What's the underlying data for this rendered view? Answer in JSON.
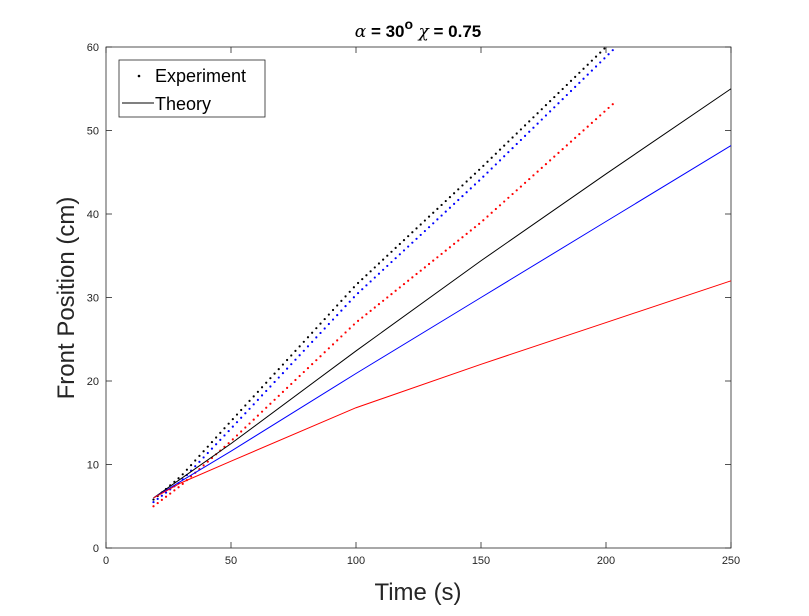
{
  "chart_data": {
    "type": "line",
    "title_parts": {
      "alpha_symbol": "α",
      "alpha_text": " = 30",
      "degree": "o",
      "chi_symbol": " χ",
      "chi_text": " = 0.75"
    },
    "xlabel": "Time (s)",
    "ylabel": "Front Position (cm)",
    "xlim": [
      0,
      250
    ],
    "ylim": [
      0,
      60
    ],
    "xticks": [
      "0",
      "50",
      "100",
      "150",
      "200",
      "250"
    ],
    "yticks": [
      "0",
      "10",
      "20",
      "30",
      "40",
      "50",
      "60"
    ],
    "grid": false,
    "legend": {
      "position": "top-left",
      "entries": [
        "Experiment",
        "Theory"
      ]
    },
    "series": [
      {
        "kind": "experiment",
        "color": "#000000",
        "t_start": 19,
        "t_end": 200,
        "dt": 1.67,
        "anchors": [
          [
            19,
            5.8
          ],
          [
            30,
            8.6
          ],
          [
            50,
            15.2
          ],
          [
            100,
            31.5
          ],
          [
            150,
            45.5
          ],
          [
            200,
            60.0
          ]
        ]
      },
      {
        "kind": "experiment",
        "color": "#0000ff",
        "t_start": 19,
        "t_end": 204,
        "dt": 1.67,
        "anchors": [
          [
            19,
            5.5
          ],
          [
            30,
            8.0
          ],
          [
            50,
            14.3
          ],
          [
            100,
            30.3
          ],
          [
            150,
            44.2
          ],
          [
            204,
            60.0
          ]
        ]
      },
      {
        "kind": "experiment",
        "color": "#ff0000",
        "t_start": 19,
        "t_end": 204,
        "dt": 1.67,
        "anchors": [
          [
            19,
            5.0
          ],
          [
            30,
            7.5
          ],
          [
            50,
            12.8
          ],
          [
            100,
            27.0
          ],
          [
            150,
            39.0
          ],
          [
            204,
            53.5
          ]
        ]
      },
      {
        "kind": "theory",
        "color": "#000000",
        "points": [
          [
            19,
            6.0
          ],
          [
            30,
            8.3
          ],
          [
            50,
            12.5
          ],
          [
            100,
            23.6
          ],
          [
            150,
            34.4
          ],
          [
            200,
            44.8
          ],
          [
            250,
            55.0
          ]
        ]
      },
      {
        "kind": "theory",
        "color": "#0000ff",
        "points": [
          [
            19,
            6.0
          ],
          [
            30,
            8.0
          ],
          [
            50,
            11.6
          ],
          [
            100,
            20.9
          ],
          [
            150,
            30.0
          ],
          [
            200,
            39.1
          ],
          [
            250,
            48.2
          ]
        ]
      },
      {
        "kind": "theory",
        "color": "#ff0000",
        "points": [
          [
            19,
            6.0
          ],
          [
            30,
            7.8
          ],
          [
            50,
            10.4
          ],
          [
            100,
            16.8
          ],
          [
            150,
            22.0
          ],
          [
            200,
            27.0
          ],
          [
            250,
            32.0
          ]
        ]
      }
    ]
  }
}
